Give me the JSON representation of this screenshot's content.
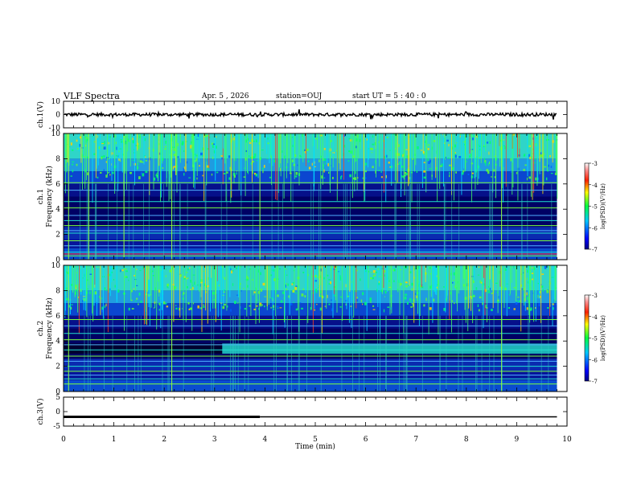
{
  "header": {
    "title": "VLF Spectra",
    "date": "Apr. 5 , 2026",
    "station": "station=OUJ",
    "start_ut": "start UT = 5 : 40 : 0"
  },
  "chart_data": {
    "type": "heatmap",
    "xlabel": "Time (min)",
    "xlim": [
      0,
      10
    ],
    "x_ticks": [
      "0",
      "1",
      "2",
      "3",
      "4",
      "5",
      "6",
      "7",
      "8",
      "9",
      "10"
    ],
    "panels": [
      {
        "name": "ch1-waveform",
        "type": "line",
        "ylabel": "ch.1(V)",
        "ylim": [
          -10,
          10
        ],
        "y_ticks": [
          "10",
          "0",
          "-10"
        ],
        "baseline": 0,
        "noise_amplitude": 1.2,
        "end_min": 9.8
      },
      {
        "name": "ch1-spectrogram",
        "type": "heatmap",
        "ylabel": "ch.1 Frequency (kHz)",
        "ylim": [
          0,
          10
        ],
        "y_ticks": [
          "0",
          "2",
          "4",
          "6",
          "8",
          "10"
        ],
        "colorbar": {
          "label": "log(PSD)(V²/Hz)",
          "range": [
            -7,
            -3
          ],
          "ticks": [
            "-3",
            "-4",
            "-5",
            "-6",
            "-7"
          ]
        },
        "tone_lines_khz": [
          0.3,
          0.6,
          1.1,
          1.5,
          2.1,
          2.3,
          2.7,
          3.1,
          3.5,
          4.1,
          4.6,
          5.5,
          6.1
        ],
        "event_times_min": [
          0.1,
          0.5,
          1.2,
          2.15,
          3.9,
          8.7
        ],
        "end_min": 9.8
      },
      {
        "name": "ch2-spectrogram",
        "type": "heatmap",
        "ylabel": "ch.2 Frequency (kHz)",
        "ylim": [
          0,
          10
        ],
        "y_ticks": [
          "0",
          "2",
          "4",
          "6",
          "8",
          "10"
        ],
        "colorbar": {
          "label": "log(PSD)(V²/Hz)",
          "range": [
            -7,
            -3
          ],
          "ticks": [
            "-3",
            "-4",
            "-5",
            "-6",
            "-7"
          ]
        },
        "tone_lines_khz": [
          0.6,
          1.0,
          1.3,
          1.6,
          2.0,
          2.4,
          2.8,
          3.3,
          3.7,
          4.1,
          4.6,
          5.2,
          5.7
        ],
        "band_khz": [
          3.0,
          3.8
        ],
        "band_start_min": 3.15,
        "event_times_min": [
          0.1,
          2.15,
          8.7
        ],
        "end_min": 9.8
      },
      {
        "name": "ch3-waveform",
        "type": "line",
        "ylabel": "ch.3(V)",
        "ylim": [
          -5,
          5
        ],
        "y_ticks": [
          "5",
          "0",
          "-5"
        ],
        "level_v": -1.8,
        "thick_until_min": 3.9,
        "end_min": 9.8
      }
    ]
  }
}
